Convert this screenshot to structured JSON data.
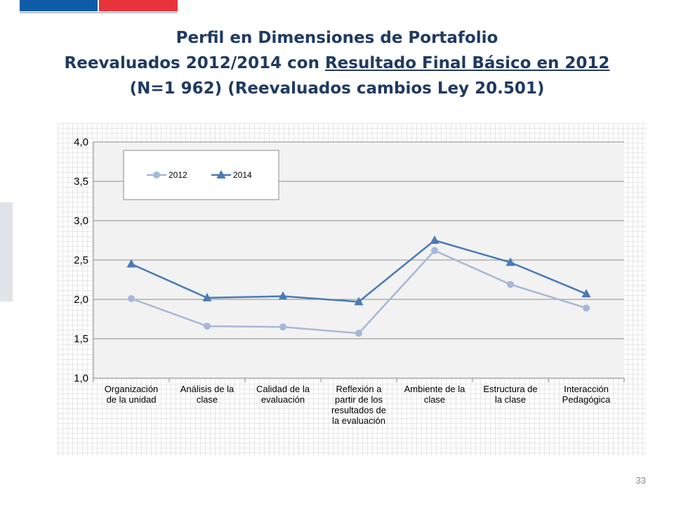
{
  "slide": {
    "title_line1": "Perfil en Dimensiones de Portafolio",
    "title_line2_prefix": "Reevaluados 2012/2014 con ",
    "title_line2_underlined": "Resultado Final Básico en 2012",
    "title_line3": "(N=1 962) (Reevaluados cambios Ley 20.501)",
    "page_number": "33",
    "colors": {
      "title": "#1f3a63",
      "flag_blue": "#0f5ba8",
      "flag_red": "#e8323c"
    }
  },
  "chart_data": {
    "type": "line",
    "categories": [
      [
        "Organización",
        "de la unidad"
      ],
      [
        "Análisis de la",
        "clase"
      ],
      [
        "Calidad de la",
        "evaluación"
      ],
      [
        "Reflexión a",
        "partir de los",
        "resultados de",
        "la evaluación"
      ],
      [
        "Ambiente de la",
        "clase"
      ],
      [
        "Estructura de",
        "la clase"
      ],
      [
        "Interacción",
        "Pedagógica"
      ]
    ],
    "series": [
      {
        "name": "2012",
        "values": [
          2.01,
          1.66,
          1.65,
          1.57,
          2.62,
          2.19,
          1.89
        ],
        "color": "#a6b8d8",
        "marker": "circle"
      },
      {
        "name": "2014",
        "values": [
          2.45,
          2.02,
          2.04,
          1.97,
          2.75,
          2.47,
          2.07
        ],
        "color": "#4a7ab8",
        "marker": "triangle"
      }
    ],
    "ylim": [
      1.0,
      4.0
    ],
    "yticks": [
      "1,0",
      "1,5",
      "2,0",
      "2,5",
      "3,0",
      "3,5",
      "4,0"
    ],
    "grid": true,
    "legend_position": "top-left"
  }
}
